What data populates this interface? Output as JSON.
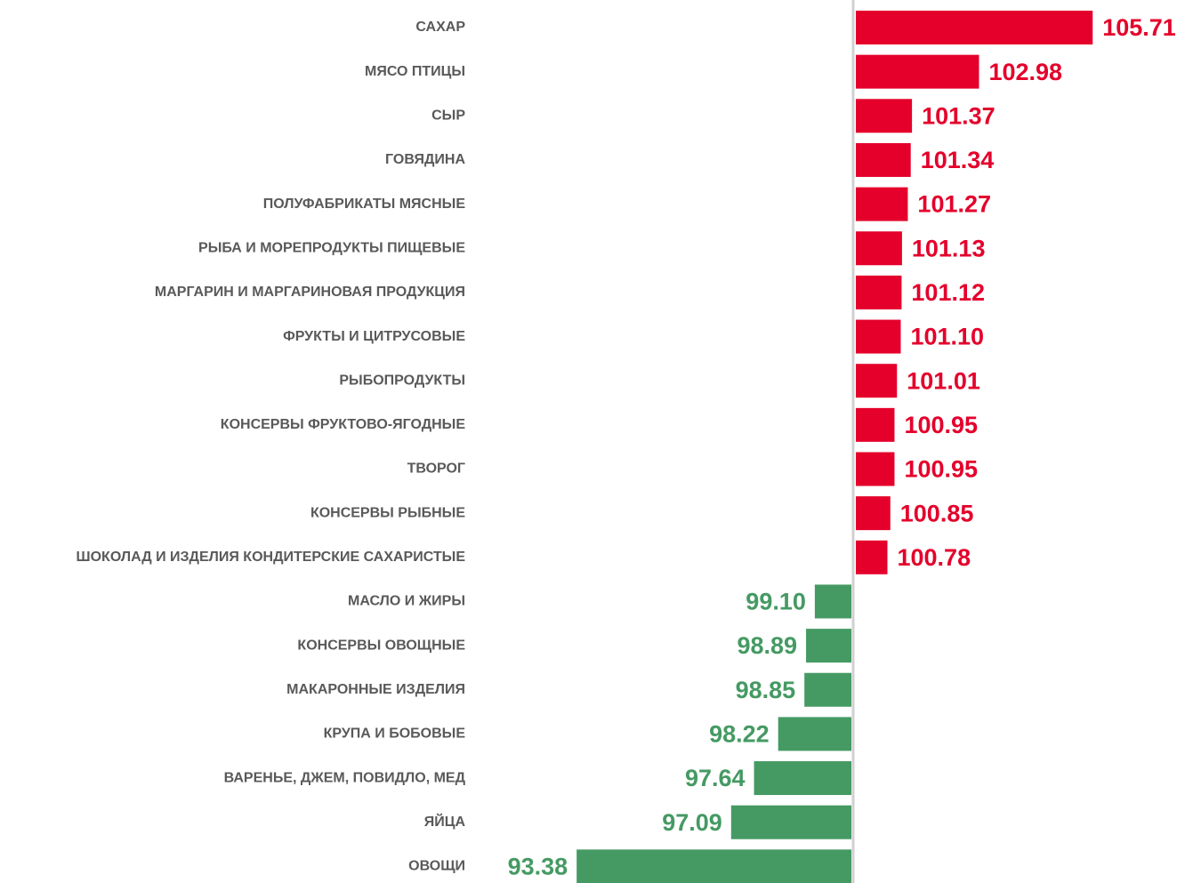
{
  "chart_data": {
    "type": "bar",
    "orientation": "horizontal",
    "categories": [
      "САХАР",
      "МЯСО ПТИЦЫ",
      "СЫР",
      "ГОВЯДИНА",
      "ПОЛУФАБРИКАТЫ МЯСНЫЕ",
      "РЫБА И МОРЕПРОДУКТЫ ПИЩЕВЫЕ",
      "МАРГАРИН И МАРГАРИНОВАЯ ПРОДУКЦИЯ",
      "ФРУКТЫ И ЦИТРУСОВЫЕ",
      "РЫБОПРОДУКТЫ",
      "КОНСЕРВЫ ФРУКТОВО-ЯГОДНЫЕ",
      "ТВОРОГ",
      "КОНСЕРВЫ РЫБНЫЕ",
      "ШОКОЛАД И ИЗДЕЛИЯ КОНДИТЕРСКИЕ САХАРИСТЫЕ",
      "МАСЛО И ЖИРЫ",
      "КОНСЕРВЫ ОВОЩНЫЕ",
      "МАКАРОННЫЕ ИЗДЕЛИЯ",
      "КРУПА И БОБОВЫЕ",
      "ВАРЕНЬЕ, ДЖЕМ, ПОВИДЛО, МЕД",
      "ЯЙЦА",
      "ОВОЩИ"
    ],
    "values": [
      105.71,
      102.98,
      101.37,
      101.34,
      101.27,
      101.13,
      101.12,
      101.1,
      101.01,
      100.95,
      100.95,
      100.85,
      100.78,
      99.1,
      98.89,
      98.85,
      98.22,
      97.64,
      97.09,
      93.38
    ],
    "value_labels": [
      "105.71",
      "102.98",
      "101.37",
      "101.34",
      "101.27",
      "101.13",
      "101.12",
      "101.10",
      "101.01",
      "100.95",
      "100.95",
      "100.85",
      "100.78",
      "99.10",
      "98.89",
      "98.85",
      "98.22",
      "97.64",
      "97.09",
      "93.38"
    ],
    "baseline": 100,
    "colors": {
      "above": "#e4002b",
      "below": "#459a63"
    },
    "xlim": [
      93,
      106
    ]
  }
}
